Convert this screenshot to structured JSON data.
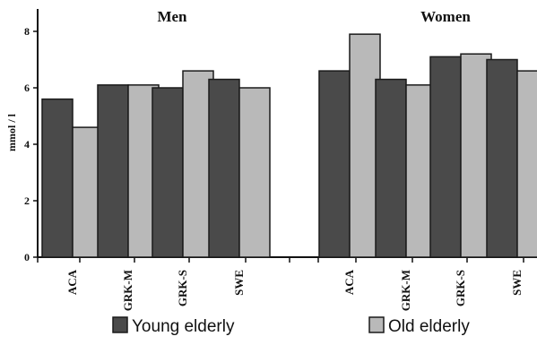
{
  "chart_data": {
    "type": "bar",
    "ylabel": "mmol / l",
    "ylim": [
      0,
      9
    ],
    "yticks": [
      0,
      2,
      4,
      6,
      8
    ],
    "grid": false,
    "legend_position": "bottom",
    "panels": [
      {
        "title": "Men",
        "categories": [
          "ACA",
          "GRK-M",
          "GRK-S",
          "SWE"
        ],
        "series": [
          {
            "name": "Young elderly",
            "values": [
              5.6,
              6.1,
              6.0,
              6.3
            ]
          },
          {
            "name": "Old elderly",
            "values": [
              4.6,
              6.1,
              6.6,
              6.0
            ]
          }
        ]
      },
      {
        "title": "Women",
        "categories": [
          "ACA",
          "GRK-M",
          "GRK-S",
          "SWE"
        ],
        "series": [
          {
            "name": "Young elderly",
            "values": [
              6.6,
              6.3,
              7.1,
              7.0
            ]
          },
          {
            "name": "Old elderly",
            "values": [
              7.9,
              6.1,
              7.2,
              6.6
            ]
          }
        ]
      }
    ],
    "legend": [
      {
        "label": "Young elderly",
        "color": "#4a4a4a"
      },
      {
        "label": "Old elderly",
        "color": "#b9b9b9"
      }
    ],
    "colors": {
      "young": "#4a4a4a",
      "old": "#b9b9b9",
      "axis": "#111111"
    }
  }
}
